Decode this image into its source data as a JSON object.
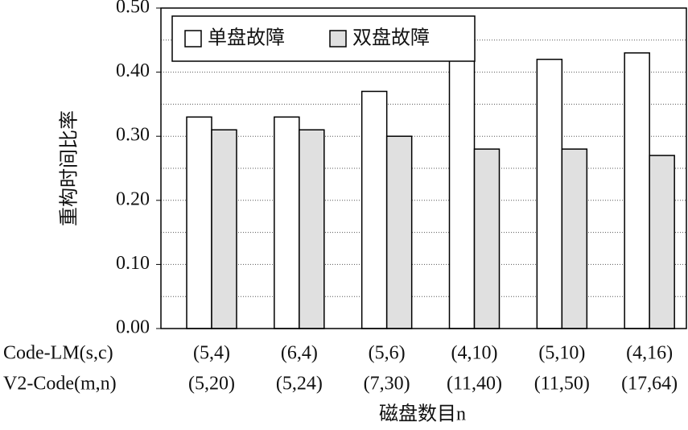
{
  "chart_data": {
    "type": "bar",
    "y_label": "重构时间比率",
    "x_label": "磁盘数目n",
    "category_row_names": [
      "Code-LM(s,c)",
      "V2-Code(m,n)"
    ],
    "categories": [
      "(5,4)",
      "(6,4)",
      "(5,6)",
      "(4,10)",
      "(5,10)",
      "(4,16)"
    ],
    "categories_2": [
      "(5,20)",
      "(5,24)",
      "(7,30)",
      "(11,40)",
      "(11,50)",
      "(17,64)"
    ],
    "series": [
      {
        "name": "单盘故障",
        "color": "#ffffff",
        "values": [
          0.33,
          0.33,
          0.37,
          0.42,
          0.42,
          0.43
        ]
      },
      {
        "name": "双盘故障",
        "color": "#e0e0e0",
        "values": [
          0.31,
          0.31,
          0.3,
          0.28,
          0.28,
          0.27
        ]
      }
    ],
    "ylim": [
      0,
      0.5
    ],
    "yticks": [
      {
        "value": 0,
        "label": "0.00"
      },
      {
        "value": 0.1,
        "label": "0.10"
      },
      {
        "value": 0.2,
        "label": "0.20"
      },
      {
        "value": 0.3,
        "label": "0.30"
      },
      {
        "value": 0.4,
        "label": "0.40"
      },
      {
        "value": 0.5,
        "label": "0.50"
      }
    ],
    "minor_grid_ticks": [
      0.05,
      0.15,
      0.25,
      0.35,
      0.45
    ],
    "grid": true,
    "legend_position": "upper left"
  }
}
